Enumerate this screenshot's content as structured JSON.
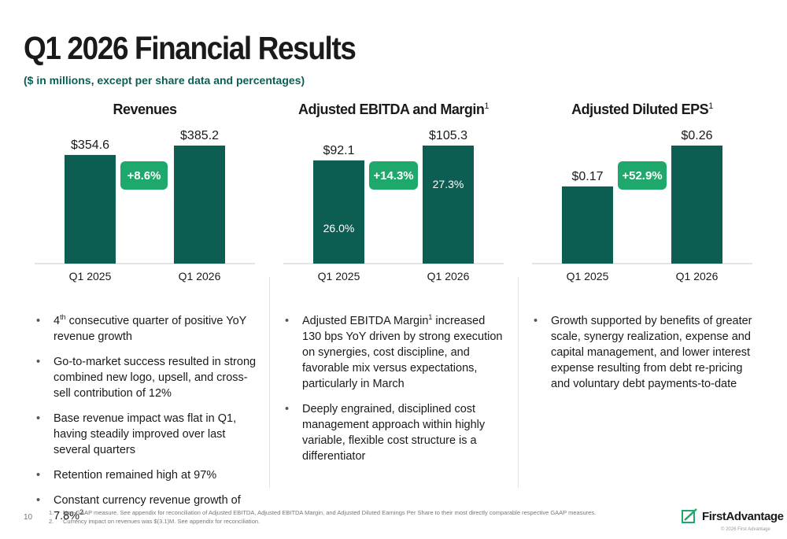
{
  "title": "Q1 2026 Financial Results",
  "subtitle": "($ in millions, except per share data and percentages)",
  "chart_data": [
    {
      "type": "bar",
      "title": "Revenues",
      "categories": [
        "Q1 2025",
        "Q1 2026"
      ],
      "values": [
        354.6,
        385.2
      ],
      "value_labels": [
        "$354.6",
        "$385.2"
      ],
      "growth_badge": "+8.6%"
    },
    {
      "type": "bar",
      "title": "Adjusted EBITDA and Margin",
      "title_footnote": "1",
      "categories": [
        "Q1 2025",
        "Q1 2026"
      ],
      "values": [
        92.1,
        105.3
      ],
      "value_labels": [
        "$92.1",
        "$105.3"
      ],
      "margin_labels": [
        "26.0%",
        "27.3%"
      ],
      "margins": [
        26.0,
        27.3
      ],
      "growth_badge": "+14.3%"
    },
    {
      "type": "bar",
      "title": "Adjusted Diluted EPS",
      "title_footnote": "1",
      "categories": [
        "Q1 2025",
        "Q1 2026"
      ],
      "values": [
        0.17,
        0.26
      ],
      "value_labels": [
        "$0.17",
        "$0.26"
      ],
      "growth_badge": "+52.9%"
    }
  ],
  "bullets": {
    "revenues": [
      {
        "sup": "th",
        "pre": "4",
        "text": " consecutive quarter of positive YoY revenue growth"
      },
      {
        "text": "Go-to-market success resulted in strong combined new logo, upsell, and cross-sell contribution of 12%"
      },
      {
        "text": "Base revenue impact was flat in Q1, having steadily improved over last several quarters"
      },
      {
        "text": "Retention remained high at 97%"
      },
      {
        "text": "Constant currency revenue growth of 7.8%",
        "sup_after": "2"
      }
    ],
    "ebitda": [
      {
        "pre": "Adjusted EBITDA Margin",
        "sup": "1",
        "text": " increased 130 bps YoY driven by strong execution on synergies, cost discipline, and favorable mix versus expectations, particularly in March"
      },
      {
        "text": "Deeply engrained, disciplined cost management approach within highly variable, flexible cost structure is a differentiator"
      }
    ],
    "eps": [
      {
        "text": "Growth supported by benefits of greater scale, synergy realization, expense and capital management, and lower interest expense resulting from debt re-pricing and voluntary debt payments-to-date"
      }
    ]
  },
  "footnotes": [
    {
      "num": "1.",
      "text": "Non-GAAP measure. See appendix for reconciliation of Adjusted EBITDA, Adjusted EBITDA Margin, and Adjusted Diluted Earnings Per Share to their most directly comparable respective GAAP measures."
    },
    {
      "num": "2.",
      "text": "Currency impact on revenues was $(3.1)M. See appendix for reconciliation."
    }
  ],
  "page_number": "10",
  "logo_text": "FirstAdvantage",
  "copyright": "© 2026 First Advantage",
  "colors": {
    "bar": "#0d5e52",
    "badge": "#1ea86b",
    "subtitle": "#0d5e52"
  }
}
